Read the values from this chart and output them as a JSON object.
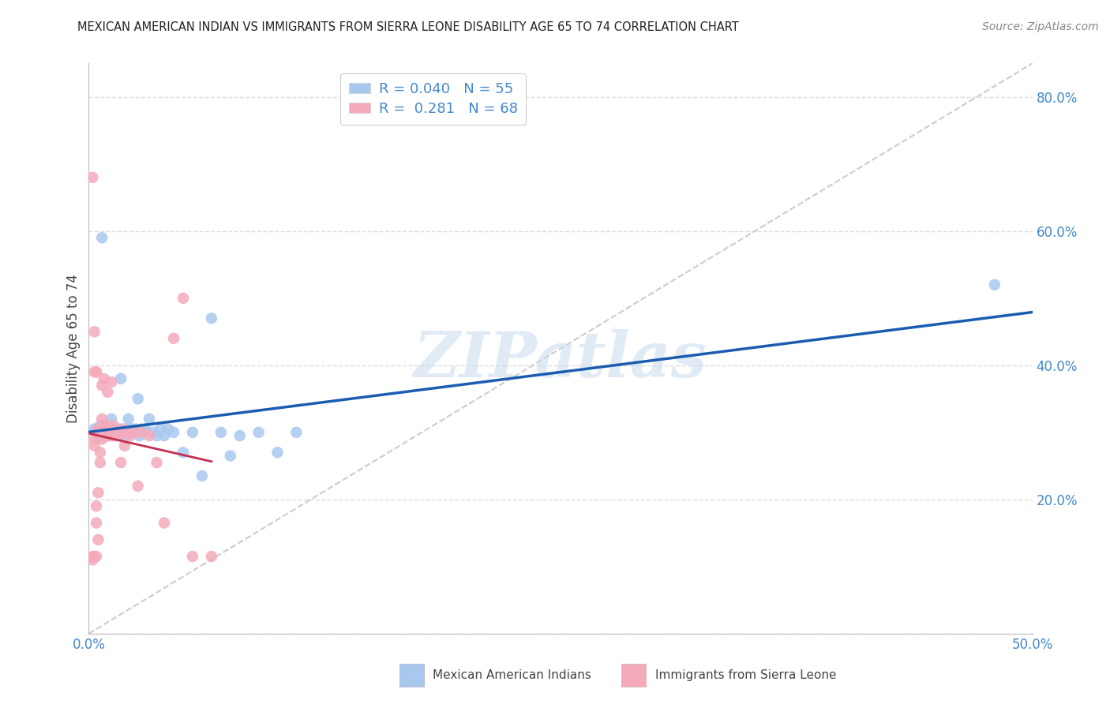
{
  "title": "MEXICAN AMERICAN INDIAN VS IMMIGRANTS FROM SIERRA LEONE DISABILITY AGE 65 TO 74 CORRELATION CHART",
  "source": "Source: ZipAtlas.com",
  "ylabel": "Disability Age 65 to 74",
  "xlim": [
    0.0,
    0.5
  ],
  "ylim": [
    0.0,
    0.85
  ],
  "xtick_vals": [
    0.0,
    0.1,
    0.2,
    0.3,
    0.4,
    0.5
  ],
  "xticklabels": [
    "0.0%",
    "",
    "",
    "",
    "",
    "50.0%"
  ],
  "ytick_vals": [
    0.0,
    0.2,
    0.4,
    0.6,
    0.8
  ],
  "yticklabels_right": [
    "",
    "20.0%",
    "40.0%",
    "60.0%",
    "80.0%"
  ],
  "watermark": "ZIPatlas",
  "legend_text_blue": "R = 0.040   N = 55",
  "legend_text_pink": "R =  0.281   N = 68",
  "legend_label_blue": "Mexican American Indians",
  "legend_label_pink": "Immigrants from Sierra Leone",
  "blue_color": "#A8C8EE",
  "pink_color": "#F4AABB",
  "blue_line_color": "#1A5CB0",
  "pink_line_color": "#C03050",
  "diag_line_color": "#CCCCCC",
  "tick_color": "#4488CC",
  "blue_scatter_x": [
    0.003,
    0.004,
    0.005,
    0.005,
    0.006,
    0.006,
    0.007,
    0.007,
    0.008,
    0.008,
    0.009,
    0.009,
    0.01,
    0.01,
    0.011,
    0.011,
    0.012,
    0.012,
    0.013,
    0.013,
    0.014,
    0.015,
    0.015,
    0.016,
    0.017,
    0.018,
    0.019,
    0.02,
    0.021,
    0.022,
    0.023,
    0.024,
    0.025,
    0.026,
    0.027,
    0.028,
    0.03,
    0.032,
    0.034,
    0.036,
    0.038,
    0.04,
    0.042,
    0.045,
    0.05,
    0.055,
    0.06,
    0.065,
    0.07,
    0.075,
    0.08,
    0.09,
    0.1,
    0.11,
    0.48
  ],
  "blue_scatter_y": [
    0.305,
    0.3,
    0.295,
    0.3,
    0.295,
    0.31,
    0.3,
    0.59,
    0.3,
    0.31,
    0.3,
    0.295,
    0.3,
    0.305,
    0.3,
    0.305,
    0.295,
    0.32,
    0.3,
    0.305,
    0.3,
    0.305,
    0.3,
    0.305,
    0.38,
    0.3,
    0.295,
    0.305,
    0.32,
    0.3,
    0.305,
    0.3,
    0.305,
    0.35,
    0.295,
    0.305,
    0.305,
    0.32,
    0.3,
    0.295,
    0.305,
    0.295,
    0.305,
    0.3,
    0.27,
    0.3,
    0.235,
    0.47,
    0.3,
    0.265,
    0.295,
    0.3,
    0.27,
    0.3,
    0.52
  ],
  "pink_scatter_x": [
    0.002,
    0.002,
    0.003,
    0.003,
    0.003,
    0.004,
    0.004,
    0.004,
    0.005,
    0.005,
    0.005,
    0.005,
    0.006,
    0.006,
    0.006,
    0.006,
    0.006,
    0.007,
    0.007,
    0.007,
    0.007,
    0.007,
    0.007,
    0.008,
    0.008,
    0.008,
    0.008,
    0.008,
    0.009,
    0.009,
    0.009,
    0.009,
    0.01,
    0.01,
    0.01,
    0.01,
    0.011,
    0.011,
    0.012,
    0.012,
    0.012,
    0.013,
    0.013,
    0.014,
    0.015,
    0.015,
    0.016,
    0.017,
    0.018,
    0.018,
    0.019,
    0.02,
    0.022,
    0.024,
    0.026,
    0.028,
    0.032,
    0.036,
    0.04,
    0.045,
    0.05,
    0.055,
    0.065,
    0.002,
    0.003,
    0.004,
    0.003,
    0.004
  ],
  "pink_scatter_y": [
    0.115,
    0.11,
    0.115,
    0.28,
    0.29,
    0.115,
    0.19,
    0.3,
    0.14,
    0.21,
    0.3,
    0.305,
    0.255,
    0.27,
    0.295,
    0.3,
    0.305,
    0.29,
    0.295,
    0.3,
    0.305,
    0.32,
    0.37,
    0.3,
    0.295,
    0.3,
    0.31,
    0.38,
    0.295,
    0.3,
    0.305,
    0.31,
    0.305,
    0.3,
    0.295,
    0.36,
    0.3,
    0.295,
    0.3,
    0.305,
    0.375,
    0.295,
    0.31,
    0.295,
    0.295,
    0.3,
    0.295,
    0.255,
    0.3,
    0.305,
    0.28,
    0.3,
    0.295,
    0.3,
    0.22,
    0.3,
    0.295,
    0.255,
    0.165,
    0.44,
    0.5,
    0.115,
    0.115,
    0.68,
    0.45,
    0.39,
    0.39,
    0.165
  ]
}
